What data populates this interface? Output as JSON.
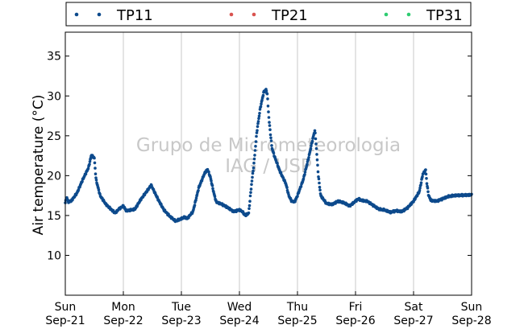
{
  "chart_data": {
    "type": "scatter",
    "ylabel": "Air temperature (°C)",
    "xlabel": "",
    "ylim": [
      5,
      38
    ],
    "yticks": [
      10,
      15,
      20,
      25,
      30,
      35
    ],
    "xlim_days": [
      0,
      7
    ],
    "xticks": [
      {
        "day": "Sun",
        "date": "Sep-21"
      },
      {
        "day": "Mon",
        "date": "Sep-22"
      },
      {
        "day": "Tue",
        "date": "Sep-23"
      },
      {
        "day": "Wed",
        "date": "Sep-24"
      },
      {
        "day": "Thu",
        "date": "Sep-25"
      },
      {
        "day": "Fri",
        "date": "Sep-26"
      },
      {
        "day": "Sat",
        "date": "Sep-27"
      },
      {
        "day": "Sun",
        "date": "Sep-28"
      }
    ],
    "grid": "vertical",
    "legend_position": "top",
    "watermark": [
      "Grupo de Micrometeorologia",
      "IAG / USP"
    ],
    "series": [
      {
        "name": "TP11",
        "color": "#0d4a8c",
        "keypoints": [
          [
            "2014-09-21 00:00",
            16.6
          ],
          [
            "2014-09-21 00:36",
            17.3
          ],
          [
            "2014-09-21 01:12",
            16.7
          ],
          [
            "2014-09-21 02:24",
            16.8
          ],
          [
            "2014-09-21 04:48",
            17.8
          ],
          [
            "2014-09-21 07:12",
            19.5
          ],
          [
            "2014-09-21 09:36",
            21.0
          ],
          [
            "2014-09-21 10:48",
            22.6
          ],
          [
            "2014-09-21 12:00",
            22.2
          ],
          [
            "2014-09-21 12:43",
            19.5
          ],
          [
            "2014-09-21 14:24",
            17.5
          ],
          [
            "2014-09-21 16:48",
            16.4
          ],
          [
            "2014-09-21 19:12",
            15.7
          ],
          [
            "2014-09-21 20:38",
            15.3
          ],
          [
            "2014-09-21 22:05",
            15.8
          ],
          [
            "2014-09-22 00:00",
            16.2
          ],
          [
            "2014-09-22 01:12",
            15.6
          ],
          [
            "2014-09-22 04:48",
            15.8
          ],
          [
            "2014-09-22 07:12",
            17.0
          ],
          [
            "2014-09-22 09:36",
            18.0
          ],
          [
            "2014-09-22 11:31",
            18.8
          ],
          [
            "2014-09-22 12:58",
            17.9
          ],
          [
            "2014-09-22 14:24",
            17.0
          ],
          [
            "2014-09-22 16:48",
            15.7
          ],
          [
            "2014-09-22 19:12",
            14.9
          ],
          [
            "2014-09-22 21:36",
            14.3
          ],
          [
            "2014-09-23 00:00",
            14.6
          ],
          [
            "2014-09-23 01:12",
            14.8
          ],
          [
            "2014-09-23 02:24",
            14.6
          ],
          [
            "2014-09-23 04:48",
            15.5
          ],
          [
            "2014-09-23 07:12",
            18.5
          ],
          [
            "2014-09-23 09:36",
            20.3
          ],
          [
            "2014-09-23 10:48",
            20.8
          ],
          [
            "2014-09-23 12:00",
            19.8
          ],
          [
            "2014-09-23 13:26",
            17.8
          ],
          [
            "2014-09-23 14:24",
            16.7
          ],
          [
            "2014-09-23 16:48",
            16.4
          ],
          [
            "2014-09-23 19:12",
            16.0
          ],
          [
            "2014-09-23 21:36",
            15.5
          ],
          [
            "2014-09-24 00:00",
            15.7
          ],
          [
            "2014-09-24 01:12",
            15.5
          ],
          [
            "2014-09-24 02:24",
            15.0
          ],
          [
            "2014-09-24 03:50",
            15.3
          ],
          [
            "2014-09-24 05:02",
            19.0
          ],
          [
            "2014-09-24 06:00",
            21.5
          ],
          [
            "2014-09-24 07:12",
            25.5
          ],
          [
            "2014-09-24 08:38",
            28.5
          ],
          [
            "2014-09-24 10:05",
            30.5
          ],
          [
            "2014-09-24 11:02",
            30.8
          ],
          [
            "2014-09-24 11:31",
            30.2
          ],
          [
            "2014-09-24 12:14",
            27.0
          ],
          [
            "2014-09-24 13:26",
            23.5
          ],
          [
            "2014-09-24 14:24",
            22.5
          ],
          [
            "2014-09-24 16:48",
            20.5
          ],
          [
            "2014-09-24 19:12",
            19.0
          ],
          [
            "2014-09-24 20:24",
            17.5
          ],
          [
            "2014-09-24 21:36",
            16.8
          ],
          [
            "2014-09-24 22:48",
            16.7
          ],
          [
            "2014-09-25 00:00",
            17.5
          ],
          [
            "2014-09-25 02:24",
            19.5
          ],
          [
            "2014-09-25 04:48",
            22.5
          ],
          [
            "2014-09-25 06:14",
            24.5
          ],
          [
            "2014-09-25 07:12",
            25.7
          ],
          [
            "2014-09-25 07:41",
            24.0
          ],
          [
            "2014-09-25 08:38",
            20.0
          ],
          [
            "2014-09-25 09:36",
            17.5
          ],
          [
            "2014-09-25 12:00",
            16.5
          ],
          [
            "2014-09-25 14:24",
            16.4
          ],
          [
            "2014-09-25 16:48",
            16.8
          ],
          [
            "2014-09-25 19:12",
            16.6
          ],
          [
            "2014-09-25 21:36",
            16.2
          ],
          [
            "2014-09-26 00:00",
            16.8
          ],
          [
            "2014-09-26 01:12",
            17.1
          ],
          [
            "2014-09-26 02:24",
            16.9
          ],
          [
            "2014-09-26 04:48",
            16.8
          ],
          [
            "2014-09-26 07:12",
            16.3
          ],
          [
            "2014-09-26 09:36",
            15.8
          ],
          [
            "2014-09-26 12:00",
            15.7
          ],
          [
            "2014-09-26 14:24",
            15.4
          ],
          [
            "2014-09-26 16:48",
            15.6
          ],
          [
            "2014-09-26 19:12",
            15.5
          ],
          [
            "2014-09-26 21:36",
            16.0
          ],
          [
            "2014-09-27 00:00",
            16.8
          ],
          [
            "2014-09-27 02:24",
            18.0
          ],
          [
            "2014-09-27 03:50",
            20.2
          ],
          [
            "2014-09-27 05:02",
            20.7
          ],
          [
            "2014-09-27 05:31",
            19.0
          ],
          [
            "2014-09-27 06:14",
            17.5
          ],
          [
            "2014-09-27 07:12",
            16.9
          ],
          [
            "2014-09-27 09:36",
            16.8
          ],
          [
            "2014-09-27 12:00",
            17.1
          ],
          [
            "2014-09-27 14:24",
            17.4
          ],
          [
            "2014-09-27 16:48",
            17.5
          ],
          [
            "2014-09-28 00:00",
            17.6
          ]
        ]
      },
      {
        "name": "TP21",
        "color": "#d9534f",
        "keypoints": []
      },
      {
        "name": "TP31",
        "color": "#2ecc71",
        "keypoints": []
      }
    ]
  }
}
